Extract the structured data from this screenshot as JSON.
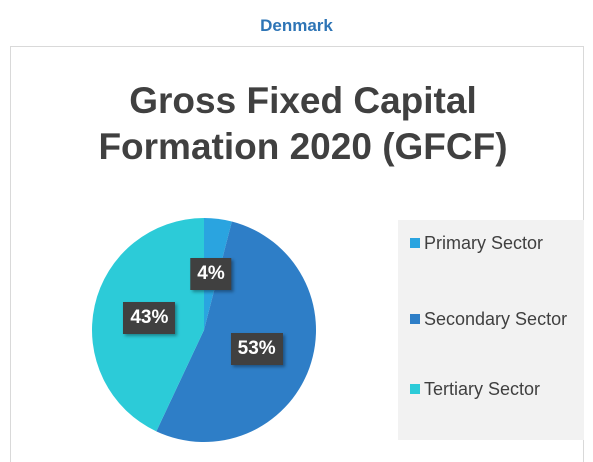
{
  "page_title": "Denmark",
  "chart_data": {
    "type": "pie",
    "title": "Gross Fixed Capital Formation 2020 (GFCF)",
    "categories": [
      "Primary Sector",
      "Secondary Sector",
      "Tertiary Sector"
    ],
    "values": [
      4,
      53,
      43
    ],
    "value_labels": [
      "4%",
      "53%",
      "43%"
    ],
    "colors": [
      "#2aa4e0",
      "#2e7ec7",
      "#2ccbd8"
    ],
    "legend": "right"
  }
}
